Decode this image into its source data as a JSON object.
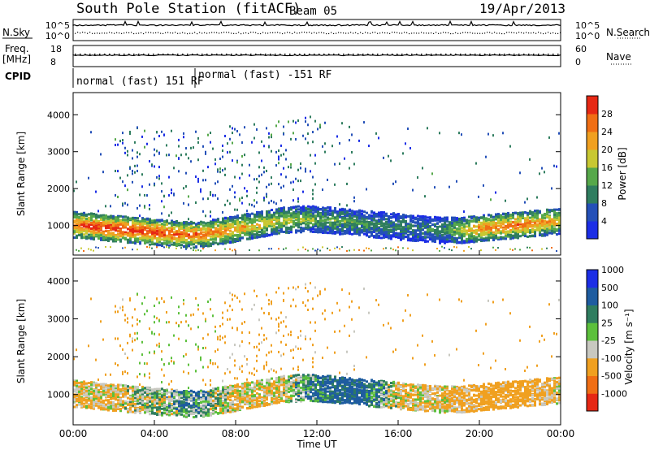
{
  "header": {
    "station_title": "South Pole Station (fitACF)",
    "beam": "Beam 05",
    "date": "19/Apr/2013"
  },
  "param_panel": {
    "nsky_label": "N.Sky",
    "nsky_ticks": [
      "10^5",
      "10^0"
    ],
    "nsearch_label": "N.Search",
    "nsearch_ticks": [
      "10^5",
      "10^0"
    ],
    "freq_label": "Freq.",
    "freq_unit": "[MHz]",
    "freq_ticks": [
      "18",
      "8"
    ],
    "nave_label": "Nave",
    "nave_ticks": [
      "60",
      "0"
    ],
    "cpid_label": "CPID",
    "cpid_segments": [
      "normal (fast) 151 RF",
      "normal (fast) -151 RF"
    ]
  },
  "x_axis": {
    "title": "Time UT",
    "ticks": [
      "00:00",
      "04:00",
      "08:00",
      "12:00",
      "16:00",
      "20:00",
      "00:00"
    ]
  },
  "colors": {
    "power_scale": [
      "#1c2ee6",
      "#2450b8",
      "#2f7d5f",
      "#56a84a",
      "#c8c832",
      "#f0a020",
      "#f06e14",
      "#e62814"
    ],
    "velocity_scale": [
      "#e62814",
      "#f06e14",
      "#f0a020",
      "#c8c8c0",
      "#5cc03c",
      "#2f7d5f",
      "#1e5ca0",
      "#1c2ee6"
    ]
  },
  "chart_data": [
    {
      "type": "heatmap",
      "panel": "power",
      "ylabel": "Slant Range [km]",
      "yticks": [
        "1000",
        "2000",
        "3000",
        "4000"
      ],
      "ylim": [
        200,
        4600
      ],
      "xlim_hours": [
        0,
        24
      ],
      "colorbar": {
        "title": "Power [dB]",
        "ticks": [
          "4",
          "8",
          "12",
          "16",
          "20",
          "24",
          "28"
        ],
        "range": [
          0,
          30
        ]
      },
      "band_center_km": [
        [
          0,
          1050
        ],
        [
          1,
          1000
        ],
        [
          2,
          950
        ],
        [
          3,
          900
        ],
        [
          4,
          850
        ],
        [
          5,
          800
        ],
        [
          6,
          780
        ],
        [
          7,
          850
        ],
        [
          8,
          950
        ],
        [
          9,
          1050
        ],
        [
          10,
          1150
        ],
        [
          11,
          1200
        ],
        [
          12,
          1200
        ],
        [
          13,
          1150
        ],
        [
          14,
          1100
        ],
        [
          15,
          1050
        ],
        [
          16,
          1000
        ],
        [
          17,
          950
        ],
        [
          18,
          900
        ],
        [
          19,
          900
        ],
        [
          20,
          950
        ],
        [
          21,
          1000
        ],
        [
          22,
          1050
        ],
        [
          23,
          1100
        ],
        [
          24,
          1150
        ]
      ],
      "band_peak_power_db": [
        [
          0,
          26
        ],
        [
          2,
          30
        ],
        [
          4,
          28
        ],
        [
          6,
          26
        ],
        [
          8,
          22
        ],
        [
          10,
          18
        ],
        [
          12,
          14
        ],
        [
          14,
          12
        ],
        [
          16,
          10
        ],
        [
          18,
          10
        ],
        [
          20,
          24
        ],
        [
          22,
          26
        ],
        [
          24,
          20
        ]
      ]
    },
    {
      "type": "heatmap",
      "panel": "velocity",
      "ylabel": "Slant Range [km]",
      "yticks": [
        "1000",
        "2000",
        "3000",
        "4000"
      ],
      "ylim": [
        200,
        4600
      ],
      "xlim_hours": [
        0,
        24
      ],
      "colorbar": {
        "title": "Velocity [m s⁻¹]",
        "ticks": [
          "-1000",
          "-500",
          "-100",
          "-25",
          "25",
          "100",
          "500",
          "1000"
        ],
        "range": [
          -1000,
          1000
        ]
      },
      "typical_velocity_m_s": [
        [
          0,
          -100
        ],
        [
          2,
          -100
        ],
        [
          4,
          -25
        ],
        [
          6,
          50
        ],
        [
          8,
          -100
        ],
        [
          10,
          -100
        ],
        [
          12,
          100
        ],
        [
          14,
          200
        ],
        [
          16,
          -100
        ],
        [
          18,
          -100
        ],
        [
          20,
          -200
        ],
        [
          22,
          -200
        ],
        [
          24,
          -100
        ]
      ]
    }
  ]
}
